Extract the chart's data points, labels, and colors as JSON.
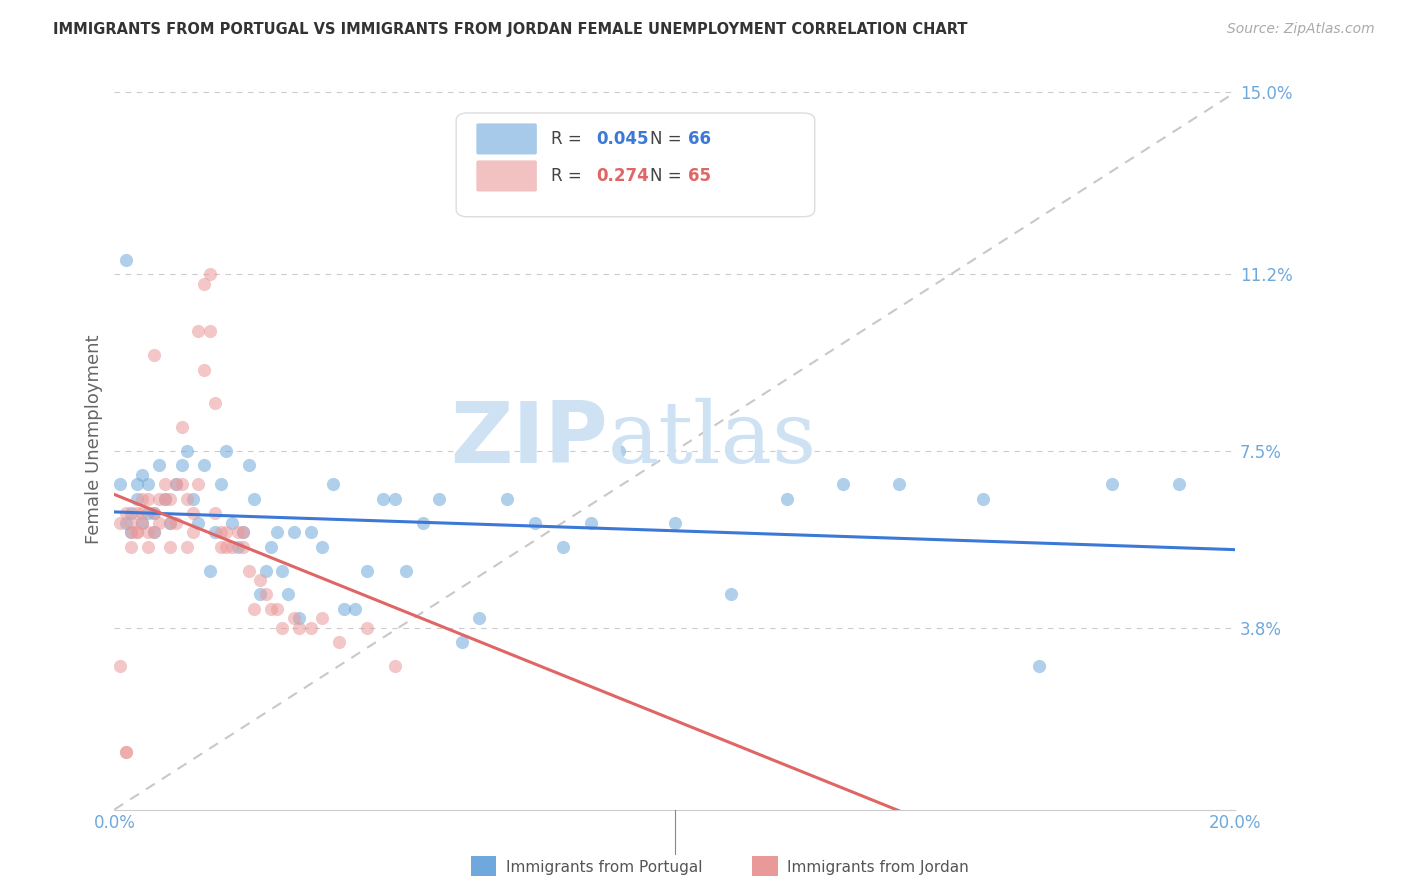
{
  "title": "IMMIGRANTS FROM PORTUGAL VS IMMIGRANTS FROM JORDAN FEMALE UNEMPLOYMENT CORRELATION CHART",
  "source": "Source: ZipAtlas.com",
  "ylabel": "Female Unemployment",
  "xlim": [
    0.0,
    0.2
  ],
  "ylim": [
    0.0,
    0.155
  ],
  "yticks": [
    0.038,
    0.075,
    0.112,
    0.15
  ],
  "ytick_labels": [
    "3.8%",
    "7.5%",
    "11.2%",
    "15.0%"
  ],
  "xticks": [
    0.0,
    0.05,
    0.1,
    0.15,
    0.2
  ],
  "color_portugal": "#6fa8dc",
  "color_jordan": "#ea9999",
  "color_portugal_line": "#3c78d8",
  "color_jordan_line": "#e06666",
  "R_portugal": 0.045,
  "N_portugal": 66,
  "R_jordan": 0.274,
  "N_jordan": 65,
  "background_color": "#ffffff",
  "grid_color": "#cccccc",
  "axis_label_color": "#6fa8dc",
  "title_color": "#333333",
  "watermark_color": "#cfe2f3",
  "portugal_x": [
    0.001,
    0.002,
    0.002,
    0.003,
    0.003,
    0.004,
    0.004,
    0.005,
    0.005,
    0.006,
    0.006,
    0.007,
    0.007,
    0.008,
    0.009,
    0.01,
    0.011,
    0.012,
    0.013,
    0.014,
    0.015,
    0.016,
    0.017,
    0.018,
    0.019,
    0.02,
    0.021,
    0.022,
    0.023,
    0.024,
    0.025,
    0.026,
    0.027,
    0.028,
    0.029,
    0.03,
    0.031,
    0.032,
    0.033,
    0.035,
    0.037,
    0.039,
    0.041,
    0.043,
    0.045,
    0.048,
    0.05,
    0.052,
    0.055,
    0.058,
    0.062,
    0.065,
    0.07,
    0.075,
    0.08,
    0.085,
    0.09,
    0.1,
    0.11,
    0.12,
    0.13,
    0.14,
    0.155,
    0.165,
    0.178,
    0.19
  ],
  "portugal_y": [
    0.068,
    0.06,
    0.115,
    0.062,
    0.058,
    0.065,
    0.068,
    0.06,
    0.07,
    0.062,
    0.068,
    0.062,
    0.058,
    0.072,
    0.065,
    0.06,
    0.068,
    0.072,
    0.075,
    0.065,
    0.06,
    0.072,
    0.05,
    0.058,
    0.068,
    0.075,
    0.06,
    0.055,
    0.058,
    0.072,
    0.065,
    0.045,
    0.05,
    0.055,
    0.058,
    0.05,
    0.045,
    0.058,
    0.04,
    0.058,
    0.055,
    0.068,
    0.042,
    0.042,
    0.05,
    0.065,
    0.065,
    0.05,
    0.06,
    0.065,
    0.035,
    0.04,
    0.065,
    0.06,
    0.055,
    0.06,
    0.075,
    0.06,
    0.045,
    0.065,
    0.068,
    0.068,
    0.065,
    0.03,
    0.068,
    0.068
  ],
  "jordan_x": [
    0.001,
    0.001,
    0.002,
    0.002,
    0.002,
    0.003,
    0.003,
    0.003,
    0.004,
    0.004,
    0.004,
    0.005,
    0.005,
    0.005,
    0.006,
    0.006,
    0.006,
    0.007,
    0.007,
    0.007,
    0.008,
    0.008,
    0.009,
    0.009,
    0.01,
    0.01,
    0.01,
    0.011,
    0.011,
    0.012,
    0.012,
    0.013,
    0.013,
    0.014,
    0.014,
    0.015,
    0.015,
    0.016,
    0.016,
    0.017,
    0.017,
    0.018,
    0.018,
    0.019,
    0.019,
    0.02,
    0.02,
    0.021,
    0.022,
    0.023,
    0.023,
    0.024,
    0.025,
    0.026,
    0.027,
    0.028,
    0.029,
    0.03,
    0.032,
    0.033,
    0.035,
    0.037,
    0.04,
    0.045,
    0.05
  ],
  "jordan_y": [
    0.06,
    0.03,
    0.062,
    0.012,
    0.012,
    0.06,
    0.058,
    0.055,
    0.062,
    0.058,
    0.058,
    0.06,
    0.065,
    0.062,
    0.065,
    0.058,
    0.055,
    0.062,
    0.058,
    0.095,
    0.06,
    0.065,
    0.068,
    0.065,
    0.065,
    0.06,
    0.055,
    0.068,
    0.06,
    0.068,
    0.08,
    0.065,
    0.055,
    0.058,
    0.062,
    0.068,
    0.1,
    0.092,
    0.11,
    0.1,
    0.112,
    0.062,
    0.085,
    0.055,
    0.058,
    0.058,
    0.055,
    0.055,
    0.058,
    0.058,
    0.055,
    0.05,
    0.042,
    0.048,
    0.045,
    0.042,
    0.042,
    0.038,
    0.04,
    0.038,
    0.038,
    0.04,
    0.035,
    0.038,
    0.03
  ]
}
